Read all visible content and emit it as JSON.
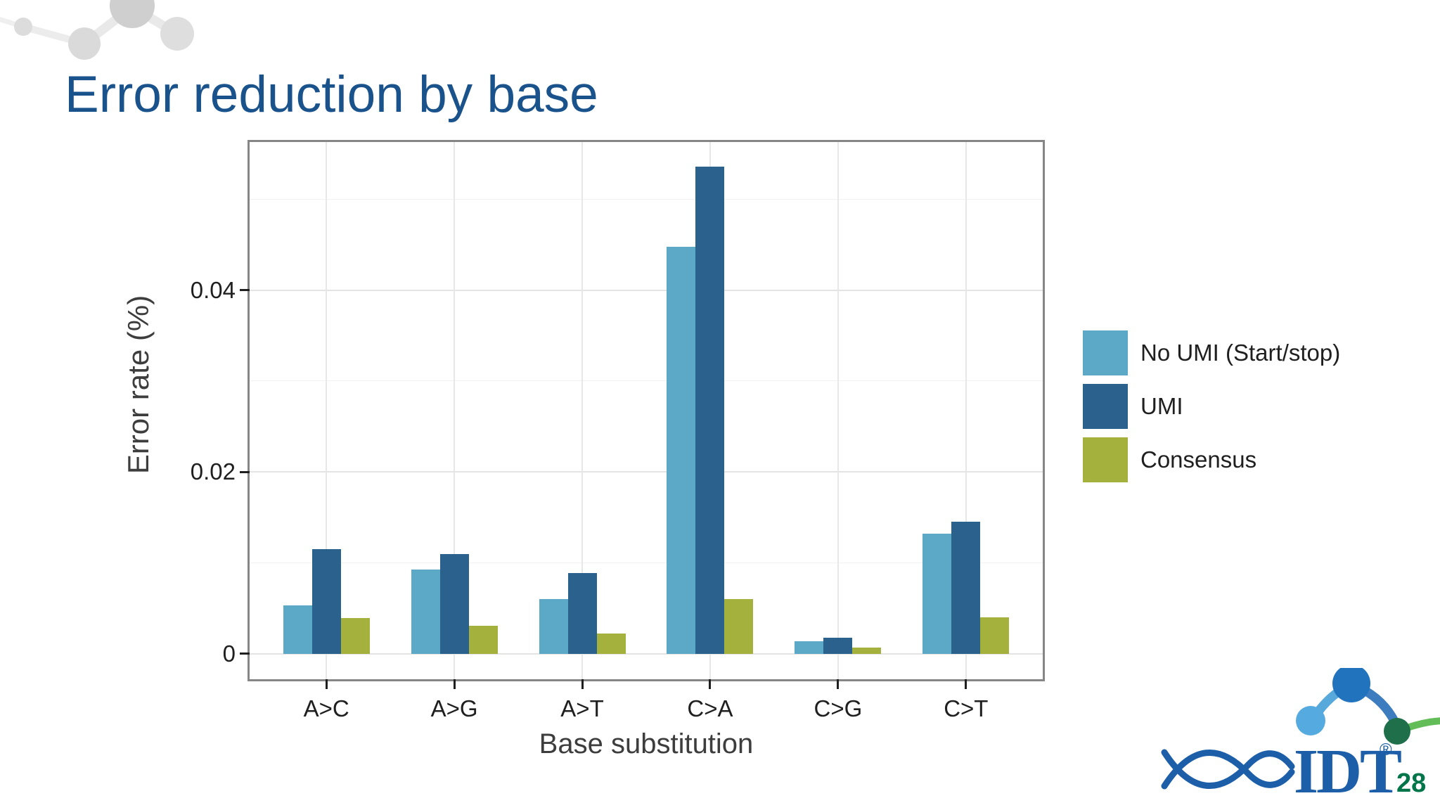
{
  "slide": {
    "title": "Error reduction by base",
    "page_number": "28",
    "logo_text": "IDT",
    "registered_mark": "®"
  },
  "colors": {
    "title_blue": "#1A528C",
    "series_no_umi": "#5BA8C7",
    "series_umi": "#2B618D",
    "series_consensus": "#A5B13D",
    "logo_blue": "#1C5FA8",
    "page_number_green": "#00754A",
    "panel_border_gray": "#868686"
  },
  "chart_data": {
    "type": "bar",
    "title": "",
    "categories": [
      "A>C",
      "A>G",
      "A>T",
      "C>A",
      "C>G",
      "C>T"
    ],
    "series": [
      {
        "name": "No UMI (Start/stop)",
        "color": "#5BA8C7",
        "values": [
          0.0053,
          0.0093,
          0.006,
          0.0448,
          0.0014,
          0.0132
        ]
      },
      {
        "name": "UMI",
        "color": "#2B618D",
        "values": [
          0.0115,
          0.011,
          0.0089,
          0.0536,
          0.0018,
          0.0145
        ]
      },
      {
        "name": "Consensus",
        "color": "#A5B13D",
        "values": [
          0.0039,
          0.0031,
          0.0022,
          0.006,
          0.0007,
          0.004
        ]
      }
    ],
    "xlabel": "Base substitution",
    "ylabel": "Error rate (%)",
    "yticks": [
      0,
      0.02,
      0.04
    ],
    "ytick_labels": [
      "0",
      "0.02",
      "0.04"
    ],
    "minor_yticks": [
      0.01,
      0.03,
      0.05
    ],
    "ylim": [
      -0.0028,
      0.0563
    ],
    "grid": true,
    "legend_position": "right"
  }
}
